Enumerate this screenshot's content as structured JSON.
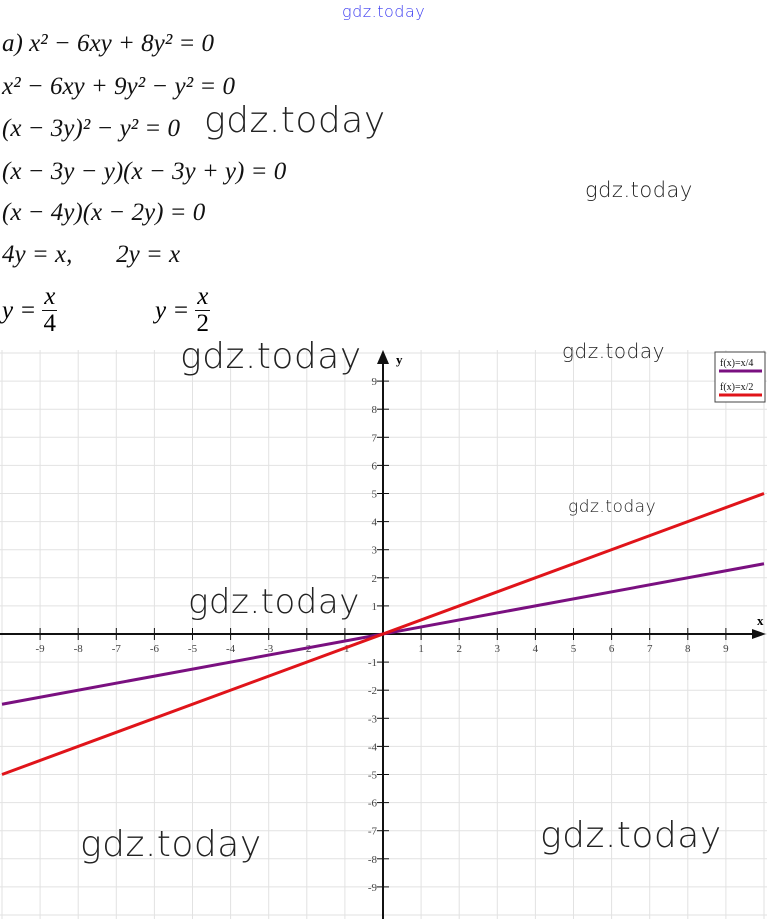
{
  "solution": {
    "lines": [
      "a) x² − 6xy + 8y² = 0",
      "x² − 6xy + 9y² − y² = 0",
      "(x − 3y)² − y² = 0",
      "(x − 3y − y)(x − 3y + y) = 0",
      "(x − 4y)(x − 2y) = 0",
      "4y = x,       2y = x"
    ],
    "fractions": [
      {
        "lhs": "y =",
        "num": "x",
        "den": "4"
      },
      {
        "lhs": "y =",
        "num": "x",
        "den": "2"
      }
    ]
  },
  "watermarks": [
    "gdz.today",
    "gdz.today",
    "gdz.today",
    "gdz.today",
    "gdz.today",
    "gdz.today",
    "gdz.today",
    "gdz.today",
    "gdz.today"
  ],
  "chart_data": {
    "type": "line",
    "xlabel": "x",
    "ylabel": "y",
    "xlim": [
      -10,
      10
    ],
    "ylim": [
      -10,
      10
    ],
    "x_ticks": [
      -9,
      -8,
      -7,
      -6,
      -5,
      -4,
      -3,
      -2,
      -1,
      1,
      2,
      3,
      4,
      5,
      6,
      7,
      8,
      9
    ],
    "y_ticks": [
      -9,
      -8,
      -7,
      -6,
      -5,
      -4,
      -3,
      -2,
      -1,
      1,
      2,
      3,
      4,
      5,
      6,
      7,
      8,
      9
    ],
    "grid": true,
    "legend_position": "top-right",
    "series": [
      {
        "name": "f(x)=x/4",
        "slope": 0.25,
        "x": [
          -10,
          10
        ],
        "y": [
          -2.5,
          2.5
        ],
        "color": "#7a1080"
      },
      {
        "name": "f(x)=x/2",
        "slope": 0.5,
        "x": [
          -10,
          10
        ],
        "y": [
          -5,
          5
        ],
        "color": "#e0141a"
      }
    ]
  }
}
